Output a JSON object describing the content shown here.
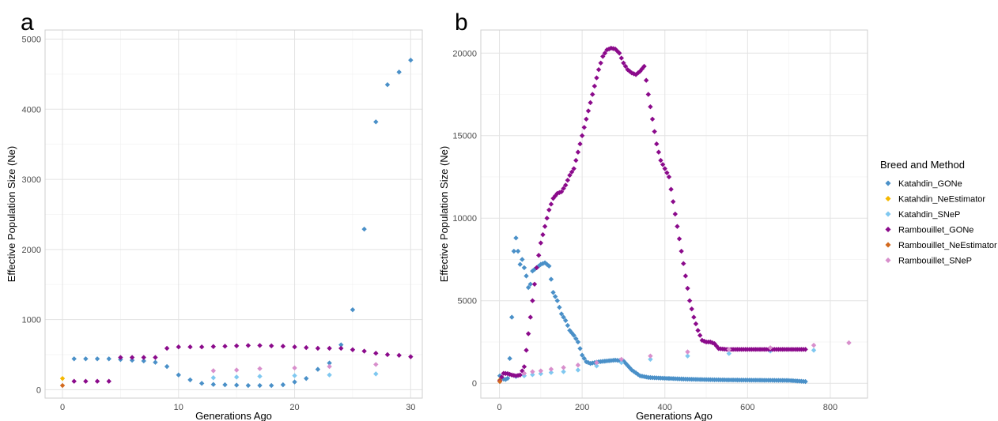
{
  "chart_data": [
    {
      "panel_label": "a",
      "type": "scatter",
      "xlabel": "Generations Ago",
      "ylabel": "Effective Population Size (Ne)",
      "xlim": [
        -1.5,
        31
      ],
      "ylim": [
        -120,
        5130
      ],
      "xticks": [
        0,
        10,
        20,
        30
      ],
      "yticks": [
        0,
        1000,
        2000,
        3000,
        4000,
        5000
      ],
      "grid": true,
      "series": [
        {
          "name": "Katahdin_GONe",
          "color": "#4A90C8",
          "points": [
            [
              1,
              440
            ],
            [
              2,
              440
            ],
            [
              3,
              440
            ],
            [
              4,
              440
            ],
            [
              5,
              430
            ],
            [
              6,
              420
            ],
            [
              7,
              410
            ],
            [
              8,
              390
            ],
            [
              9,
              330
            ],
            [
              10,
              210
            ],
            [
              11,
              140
            ],
            [
              12,
              90
            ],
            [
              13,
              75
            ],
            [
              14,
              70
            ],
            [
              15,
              65
            ],
            [
              16,
              60
            ],
            [
              17,
              60
            ],
            [
              18,
              60
            ],
            [
              19,
              70
            ],
            [
              20,
              110
            ],
            [
              21,
              160
            ],
            [
              22,
              290
            ],
            [
              23,
              380
            ],
            [
              24,
              640
            ],
            [
              25,
              1140
            ],
            [
              26,
              2290
            ],
            [
              27,
              3820
            ],
            [
              28,
              4350
            ],
            [
              29,
              4530
            ],
            [
              30,
              4700
            ]
          ]
        },
        {
          "name": "Katahdin_NeEstimator",
          "color": "#F5B800",
          "points": [
            [
              0,
              160
            ]
          ]
        },
        {
          "name": "Katahdin_SNeP",
          "color": "#7FC8F0",
          "points": [
            [
              13,
              170
            ],
            [
              15,
              180
            ],
            [
              17,
              190
            ],
            [
              20,
              200
            ],
            [
              23,
              210
            ],
            [
              27,
              225
            ]
          ]
        },
        {
          "name": "Rambouillet_GONe",
          "color": "#8B0A8B",
          "points": [
            [
              1,
              120
            ],
            [
              2,
              120
            ],
            [
              3,
              120
            ],
            [
              4,
              120
            ],
            [
              5,
              460
            ],
            [
              6,
              460
            ],
            [
              7,
              460
            ],
            [
              8,
              460
            ],
            [
              9,
              590
            ],
            [
              10,
              610
            ],
            [
              11,
              610
            ],
            [
              12,
              610
            ],
            [
              13,
              615
            ],
            [
              14,
              620
            ],
            [
              15,
              625
            ],
            [
              16,
              630
            ],
            [
              17,
              630
            ],
            [
              18,
              625
            ],
            [
              19,
              620
            ],
            [
              20,
              610
            ],
            [
              21,
              600
            ],
            [
              22,
              590
            ],
            [
              23,
              590
            ],
            [
              24,
              590
            ],
            [
              25,
              570
            ],
            [
              26,
              550
            ],
            [
              27,
              520
            ],
            [
              28,
              500
            ],
            [
              29,
              490
            ],
            [
              30,
              470
            ]
          ]
        },
        {
          "name": "Rambouillet_NeEstimator",
          "color": "#D2691E",
          "points": [
            [
              0,
              60
            ]
          ]
        },
        {
          "name": "Rambouillet_SNeP",
          "color": "#D88FCC",
          "points": [
            [
              13,
              270
            ],
            [
              15,
              280
            ],
            [
              17,
              300
            ],
            [
              20,
              310
            ],
            [
              23,
              330
            ],
            [
              27,
              360
            ]
          ]
        }
      ]
    },
    {
      "panel_label": "b",
      "type": "scatter",
      "xlabel": "Generations Ago",
      "ylabel": "Effective Population Size (Ne)",
      "xlim": [
        -45,
        890
      ],
      "ylim": [
        -900,
        21400
      ],
      "xticks": [
        0,
        200,
        400,
        600,
        800
      ],
      "yticks": [
        0,
        5000,
        10000,
        15000,
        20000
      ],
      "grid": true,
      "series": [
        {
          "name": "Katahdin_GONe",
          "color": "#4A90C8",
          "points": [
            [
              1,
              450
            ],
            [
              5,
              300
            ],
            [
              10,
              250
            ],
            [
              15,
              230
            ],
            [
              20,
              300
            ],
            [
              25,
              1500
            ],
            [
              30,
              4000
            ],
            [
              35,
              8000
            ],
            [
              40,
              8800
            ],
            [
              45,
              8000
            ],
            [
              50,
              7200
            ],
            [
              55,
              7500
            ],
            [
              60,
              7000
            ],
            [
              65,
              6500
            ],
            [
              70,
              5800
            ],
            [
              75,
              6000
            ],
            [
              80,
              6800
            ],
            [
              90,
              7000
            ],
            [
              100,
              7200
            ],
            [
              110,
              7300
            ],
            [
              120,
              7100
            ],
            [
              130,
              5500
            ],
            [
              140,
              5000
            ],
            [
              150,
              4200
            ],
            [
              160,
              3800
            ],
            [
              170,
              3200
            ],
            [
              180,
              2900
            ],
            [
              190,
              2500
            ],
            [
              200,
              1700
            ],
            [
              210,
              1300
            ],
            [
              220,
              1200
            ],
            [
              240,
              1300
            ],
            [
              260,
              1350
            ],
            [
              280,
              1400
            ],
            [
              300,
              1350
            ],
            [
              320,
              800
            ],
            [
              340,
              450
            ],
            [
              360,
              350
            ],
            [
              400,
              300
            ],
            [
              450,
              250
            ],
            [
              500,
              220
            ],
            [
              550,
              200
            ],
            [
              600,
              190
            ],
            [
              650,
              180
            ],
            [
              700,
              170
            ],
            [
              740,
              100
            ]
          ]
        },
        {
          "name": "Katahdin_NeEstimator",
          "color": "#F5B800",
          "points": [
            [
              1,
              200
            ]
          ]
        },
        {
          "name": "Katahdin_SNeP",
          "color": "#7FC8F0",
          "points": [
            [
              40,
              400
            ],
            [
              60,
              450
            ],
            [
              80,
              520
            ],
            [
              100,
              580
            ],
            [
              125,
              650
            ],
            [
              155,
              700
            ],
            [
              190,
              800
            ],
            [
              235,
              1050
            ],
            [
              295,
              1250
            ],
            [
              365,
              1450
            ],
            [
              455,
              1650
            ],
            [
              555,
              1800
            ],
            [
              655,
              1950
            ],
            [
              760,
              2000
            ]
          ]
        },
        {
          "name": "Rambouillet_GONe",
          "color": "#8B0A8B",
          "points": [
            [
              1,
              150
            ],
            [
              10,
              600
            ],
            [
              20,
              580
            ],
            [
              30,
              500
            ],
            [
              40,
              450
            ],
            [
              50,
              500
            ],
            [
              60,
              1000
            ],
            [
              70,
              3000
            ],
            [
              80,
              5000
            ],
            [
              90,
              7000
            ],
            [
              100,
              8500
            ],
            [
              110,
              9500
            ],
            [
              120,
              10500
            ],
            [
              130,
              11200
            ],
            [
              140,
              11500
            ],
            [
              150,
              11600
            ],
            [
              160,
              12000
            ],
            [
              170,
              12600
            ],
            [
              180,
              13000
            ],
            [
              190,
              14000
            ],
            [
              200,
              15000
            ],
            [
              210,
              16000
            ],
            [
              220,
              17000
            ],
            [
              230,
              18000
            ],
            [
              240,
              19000
            ],
            [
              250,
              19800
            ],
            [
              260,
              20200
            ],
            [
              270,
              20300
            ],
            [
              280,
              20250
            ],
            [
              290,
              20000
            ],
            [
              300,
              19400
            ],
            [
              310,
              19000
            ],
            [
              320,
              18800
            ],
            [
              330,
              18700
            ],
            [
              340,
              18900
            ],
            [
              350,
              19200
            ],
            [
              360,
              17500
            ],
            [
              370,
              16000
            ],
            [
              380,
              14500
            ],
            [
              390,
              13500
            ],
            [
              400,
              13000
            ],
            [
              410,
              12500
            ],
            [
              420,
              11000
            ],
            [
              430,
              9500
            ],
            [
              440,
              8000
            ],
            [
              450,
              6500
            ],
            [
              460,
              5000
            ],
            [
              470,
              4000
            ],
            [
              480,
              3200
            ],
            [
              490,
              2600
            ],
            [
              500,
              2500
            ],
            [
              510,
              2500
            ],
            [
              520,
              2400
            ],
            [
              530,
              2100
            ],
            [
              550,
              2050
            ],
            [
              600,
              2050
            ],
            [
              650,
              2050
            ],
            [
              700,
              2050
            ],
            [
              740,
              2050
            ]
          ]
        },
        {
          "name": "Rambouillet_NeEstimator",
          "color": "#D2691E",
          "points": [
            [
              1,
              100
            ]
          ]
        },
        {
          "name": "Rambouillet_SNeP",
          "color": "#D88FCC",
          "points": [
            [
              60,
              600
            ],
            [
              80,
              700
            ],
            [
              100,
              750
            ],
            [
              125,
              850
            ],
            [
              155,
              950
            ],
            [
              190,
              1100
            ],
            [
              235,
              1250
            ],
            [
              295,
              1450
            ],
            [
              365,
              1650
            ],
            [
              455,
              1900
            ],
            [
              555,
              2050
            ],
            [
              655,
              2150
            ],
            [
              760,
              2300
            ],
            [
              845,
              2450
            ]
          ]
        }
      ]
    }
  ],
  "legend": {
    "title": "Breed and Method",
    "placement": "right",
    "items": [
      {
        "label": "Katahdin_GONe",
        "color": "#4A90C8"
      },
      {
        "label": "Katahdin_NeEstimator",
        "color": "#F5B800"
      },
      {
        "label": "Katahdin_SNeP",
        "color": "#7FC8F0"
      },
      {
        "label": "Rambouillet_GONe",
        "color": "#8B0A8B"
      },
      {
        "label": "Rambouillet_NeEstimator",
        "color": "#D2691E"
      },
      {
        "label": "Rambouillet_SNeP",
        "color": "#D88FCC"
      }
    ]
  }
}
